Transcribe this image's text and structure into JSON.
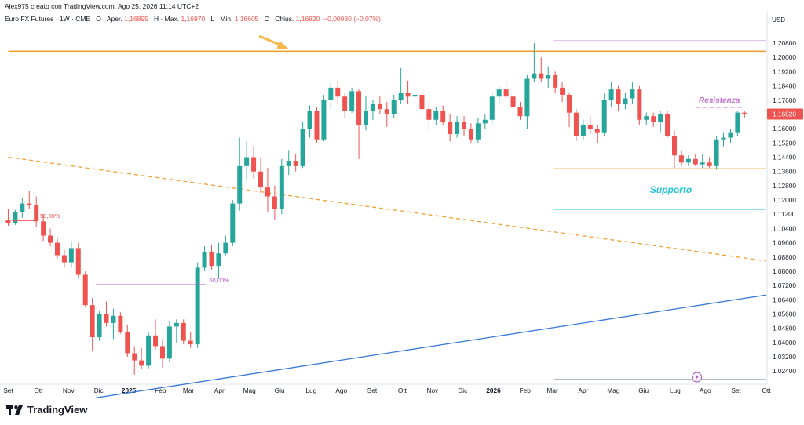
{
  "header": {
    "author_line": "Alex975 creato con TradingView.com, Ago 25, 2026 11:14 UTC+2",
    "symbol": "Euro FX Futures · 1W · CME",
    "open_label": "O · Aper.",
    "open_value": "1,16895",
    "high_label": "H · Max.",
    "high_value": "1,16970",
    "low_label": "L · Min.",
    "low_value": "1,16605",
    "close_label": "C · Chius.",
    "close_value": "1,16820",
    "change": "−0,00080 (−0,07%)"
  },
  "brand": {
    "name": "TradingView"
  },
  "colors": {
    "up": "#26a69a",
    "down": "#ef5350",
    "orange": "#f0a030",
    "purple": "#b05cc8",
    "cyan": "#26c6da",
    "blue": "#3a78d8",
    "resistance": "#c070d0",
    "gridline": "#f0f3fa"
  },
  "chart_data": {
    "type": "candlestick",
    "title": "",
    "currency_label": "USD",
    "ylim": [
      1.0175,
      1.2155
    ],
    "x_ticks": [
      {
        "label": "Set",
        "x": 0
      },
      {
        "label": "Ott",
        "x": 4.3
      },
      {
        "label": "Nov",
        "x": 8.6
      },
      {
        "label": "Dic",
        "x": 12.9
      },
      {
        "label": "2025",
        "x": 17.2,
        "bold": true
      },
      {
        "label": "Feb",
        "x": 21.7
      },
      {
        "label": "Mar",
        "x": 25.7
      },
      {
        "label": "Apr",
        "x": 30.1
      },
      {
        "label": "Mag",
        "x": 34.4
      },
      {
        "label": "Giu",
        "x": 38.7
      },
      {
        "label": "Lug",
        "x": 43.2
      },
      {
        "label": "Ago",
        "x": 47.5
      },
      {
        "label": "Set",
        "x": 51.9
      },
      {
        "label": "Ott",
        "x": 56.2
      },
      {
        "label": "Nov",
        "x": 60.5
      },
      {
        "label": "Dic",
        "x": 64.8
      },
      {
        "label": "2026",
        "x": 69.2,
        "bold": true
      },
      {
        "label": "Feb",
        "x": 73.7
      },
      {
        "label": "Mar",
        "x": 77.6
      },
      {
        "label": "Apr",
        "x": 82.0
      },
      {
        "label": "Mag",
        "x": 86.3
      },
      {
        "label": "Giu",
        "x": 90.6
      },
      {
        "label": "Lug",
        "x": 95.1
      },
      {
        "label": "Ago",
        "x": 99.4
      },
      {
        "label": "Set",
        "x": 103.8
      },
      {
        "label": "Ott",
        "x": 108.1
      }
    ],
    "y_ticks": [
      "1,20800",
      "1,20000",
      "1,19200",
      "1,18400",
      "1,17600",
      "1,16800",
      "1,16000",
      "1,15200",
      "1,14400",
      "1,13600",
      "1,12800",
      "1,12000",
      "1,11200",
      "1,10400",
      "1,09600",
      "1,08800",
      "1,08000",
      "1,07200",
      "1,06400",
      "1,05600",
      "1,04800",
      "1,04000",
      "1,03200",
      "1,02400"
    ],
    "y_tick_values": [
      1.208,
      1.2,
      1.192,
      1.184,
      1.176,
      1.168,
      1.16,
      1.152,
      1.144,
      1.136,
      1.128,
      1.12,
      1.112,
      1.104,
      1.096,
      1.088,
      1.08,
      1.072,
      1.064,
      1.056,
      1.048,
      1.04,
      1.032,
      1.024
    ],
    "last_price_label": "1,16820",
    "last_price": 1.1682,
    "candles": [
      [
        1.109,
        1.115,
        1.1055,
        1.107
      ],
      [
        1.107,
        1.1145,
        1.106,
        1.113
      ],
      [
        1.113,
        1.121,
        1.11,
        1.118
      ],
      [
        1.118,
        1.125,
        1.115,
        1.117
      ],
      [
        1.117,
        1.122,
        1.105,
        1.108
      ],
      [
        1.108,
        1.112,
        1.097,
        1.1
      ],
      [
        1.1,
        1.104,
        1.094,
        1.096
      ],
      [
        1.096,
        1.099,
        1.087,
        1.089
      ],
      [
        1.089,
        1.092,
        1.082,
        1.085
      ],
      [
        1.085,
        1.097,
        1.082,
        1.093
      ],
      [
        1.093,
        1.096,
        1.076,
        1.078
      ],
      [
        1.078,
        1.08,
        1.06,
        1.061
      ],
      [
        1.061,
        1.065,
        1.035,
        1.043
      ],
      [
        1.043,
        1.058,
        1.041,
        1.056
      ],
      [
        1.056,
        1.063,
        1.049,
        1.051
      ],
      [
        1.051,
        1.059,
        1.042,
        1.055
      ],
      [
        1.055,
        1.057,
        1.045,
        1.046
      ],
      [
        1.046,
        1.05,
        1.032,
        1.034
      ],
      [
        1.034,
        1.038,
        1.022,
        1.03
      ],
      [
        1.03,
        1.037,
        1.025,
        1.027
      ],
      [
        1.027,
        1.046,
        1.025,
        1.044
      ],
      [
        1.044,
        1.053,
        1.036,
        1.038
      ],
      [
        1.038,
        1.042,
        1.026,
        1.031
      ],
      [
        1.031,
        1.052,
        1.029,
        1.049
      ],
      [
        1.049,
        1.053,
        1.04,
        1.051
      ],
      [
        1.051,
        1.053,
        1.039,
        1.041
      ],
      [
        1.041,
        1.046,
        1.037,
        1.039
      ],
      [
        1.039,
        1.085,
        1.037,
        1.082
      ],
      [
        1.082,
        1.094,
        1.08,
        1.091
      ],
      [
        1.091,
        1.095,
        1.081,
        1.083
      ],
      [
        1.083,
        1.096,
        1.076,
        1.09
      ],
      [
        1.09,
        1.1,
        1.089,
        1.096
      ],
      [
        1.096,
        1.12,
        1.094,
        1.118
      ],
      [
        1.118,
        1.155,
        1.114,
        1.139
      ],
      [
        1.139,
        1.153,
        1.131,
        1.144
      ],
      [
        1.144,
        1.15,
        1.132,
        1.136
      ],
      [
        1.136,
        1.144,
        1.124,
        1.127
      ],
      [
        1.127,
        1.138,
        1.113,
        1.122
      ],
      [
        1.122,
        1.128,
        1.109,
        1.115
      ],
      [
        1.115,
        1.143,
        1.112,
        1.139
      ],
      [
        1.139,
        1.148,
        1.134,
        1.142
      ],
      [
        1.142,
        1.146,
        1.136,
        1.139
      ],
      [
        1.139,
        1.164,
        1.138,
        1.16
      ],
      [
        1.16,
        1.173,
        1.155,
        1.17
      ],
      [
        1.17,
        1.172,
        1.152,
        1.154
      ],
      [
        1.154,
        1.179,
        1.153,
        1.176
      ],
      [
        1.176,
        1.186,
        1.171,
        1.183
      ],
      [
        1.183,
        1.187,
        1.174,
        1.178
      ],
      [
        1.178,
        1.18,
        1.166,
        1.17
      ],
      [
        1.17,
        1.183,
        1.169,
        1.181
      ],
      [
        1.181,
        1.182,
        1.143,
        1.162
      ],
      [
        1.162,
        1.178,
        1.159,
        1.17
      ],
      [
        1.17,
        1.176,
        1.165,
        1.174
      ],
      [
        1.174,
        1.178,
        1.168,
        1.171
      ],
      [
        1.171,
        1.175,
        1.161,
        1.168
      ],
      [
        1.168,
        1.179,
        1.166,
        1.176
      ],
      [
        1.176,
        1.194,
        1.174,
        1.18
      ],
      [
        1.18,
        1.187,
        1.174,
        1.178
      ],
      [
        1.178,
        1.182,
        1.175,
        1.179
      ],
      [
        1.179,
        1.18,
        1.169,
        1.171
      ],
      [
        1.171,
        1.176,
        1.159,
        1.165
      ],
      [
        1.165,
        1.172,
        1.162,
        1.17
      ],
      [
        1.17,
        1.173,
        1.162,
        1.164
      ],
      [
        1.164,
        1.168,
        1.153,
        1.157
      ],
      [
        1.157,
        1.167,
        1.155,
        1.164
      ],
      [
        1.164,
        1.167,
        1.156,
        1.16
      ],
      [
        1.16,
        1.163,
        1.152,
        1.154
      ],
      [
        1.154,
        1.166,
        1.152,
        1.163
      ],
      [
        1.163,
        1.168,
        1.16,
        1.165
      ],
      [
        1.165,
        1.18,
        1.163,
        1.178
      ],
      [
        1.178,
        1.184,
        1.174,
        1.182
      ],
      [
        1.182,
        1.186,
        1.176,
        1.178
      ],
      [
        1.178,
        1.18,
        1.169,
        1.172
      ],
      [
        1.172,
        1.175,
        1.165,
        1.167
      ],
      [
        1.167,
        1.19,
        1.16,
        1.188
      ],
      [
        1.188,
        1.208,
        1.186,
        1.191
      ],
      [
        1.191,
        1.2,
        1.186,
        1.188
      ],
      [
        1.188,
        1.195,
        1.183,
        1.19
      ],
      [
        1.19,
        1.192,
        1.18,
        1.183
      ],
      [
        1.183,
        1.186,
        1.175,
        1.179
      ],
      [
        1.179,
        1.18,
        1.161,
        1.169
      ],
      [
        1.169,
        1.171,
        1.153,
        1.156
      ],
      [
        1.156,
        1.165,
        1.154,
        1.162
      ],
      [
        1.162,
        1.167,
        1.157,
        1.16
      ],
      [
        1.16,
        1.162,
        1.152,
        1.158
      ],
      [
        1.158,
        1.18,
        1.156,
        1.176
      ],
      [
        1.176,
        1.186,
        1.172,
        1.182
      ],
      [
        1.182,
        1.184,
        1.17,
        1.174
      ],
      [
        1.174,
        1.18,
        1.171,
        1.177
      ],
      [
        1.177,
        1.186,
        1.174,
        1.182
      ],
      [
        1.182,
        1.184,
        1.162,
        1.165
      ],
      [
        1.165,
        1.169,
        1.162,
        1.167
      ],
      [
        1.167,
        1.169,
        1.161,
        1.164
      ],
      [
        1.164,
        1.17,
        1.158,
        1.168
      ],
      [
        1.168,
        1.17,
        1.155,
        1.156
      ],
      [
        1.156,
        1.159,
        1.138,
        1.145
      ],
      [
        1.145,
        1.148,
        1.139,
        1.141
      ],
      [
        1.141,
        1.145,
        1.139,
        1.143
      ],
      [
        1.143,
        1.146,
        1.139,
        1.14
      ],
      [
        1.14,
        1.146,
        1.138,
        1.141
      ],
      [
        1.141,
        1.144,
        1.138,
        1.139
      ],
      [
        1.139,
        1.156,
        1.137,
        1.154
      ],
      [
        1.154,
        1.158,
        1.15,
        1.155
      ],
      [
        1.155,
        1.16,
        1.152,
        1.158
      ],
      [
        1.158,
        1.17,
        1.156,
        1.169
      ],
      [
        1.169,
        1.17,
        1.166,
        1.1682
      ]
    ],
    "horizontal_lines": [
      {
        "name": "resistance-top-line",
        "y": 1.2035,
        "x0": 0,
        "x1": 108.6,
        "color": "#f0a030",
        "width": 1.6
      },
      {
        "name": "support-orange-line",
        "y": 1.1375,
        "x0": 77.7,
        "x1": 108.6,
        "color": "#f0a030",
        "width": 1.3
      },
      {
        "name": "support-cyan-line",
        "y": 1.1148,
        "x0": 77.7,
        "x1": 108.6,
        "color": "#26c6da",
        "width": 1.3
      },
      {
        "name": "top-purple-thin-line",
        "y": 1.2095,
        "x0": 77.7,
        "x1": 108.6,
        "color": "#d8c0e8",
        "width": 1
      },
      {
        "name": "bottom-gray-line",
        "y": 1.0195,
        "x0": 77.7,
        "x1": 108.6,
        "color": "#b8bcc8",
        "width": 1
      }
    ],
    "fib_lines": [
      {
        "label": "50,00%",
        "y": 1.1085,
        "x0": 0.5,
        "x1": 4.1,
        "color": "#ef5350"
      },
      {
        "label": "50,00%",
        "y": 1.0724,
        "x0": 12.5,
        "x1": 28.2,
        "color": "#b05cc8"
      }
    ],
    "trend_lines": [
      {
        "name": "descending-dashed-trendline",
        "x0": 0,
        "y0": 1.144,
        "x1": 108.6,
        "y1": 1.0858,
        "color": "#f0a030",
        "dashed": true
      },
      {
        "name": "ascending-trendline",
        "x0": 12.5,
        "y0": 1.009,
        "x1": 108.6,
        "y1": 1.0667,
        "color": "#3a78d8",
        "dashed": false
      }
    ],
    "resistance_dashed": {
      "label": "Resistenza",
      "y": 1.172,
      "x0": 98.0,
      "x1": 104.8,
      "color": "#c070d0"
    },
    "support_label": {
      "label": "Supporto",
      "y": 1.1195,
      "x": 94.5,
      "color": "#26c6da"
    }
  }
}
